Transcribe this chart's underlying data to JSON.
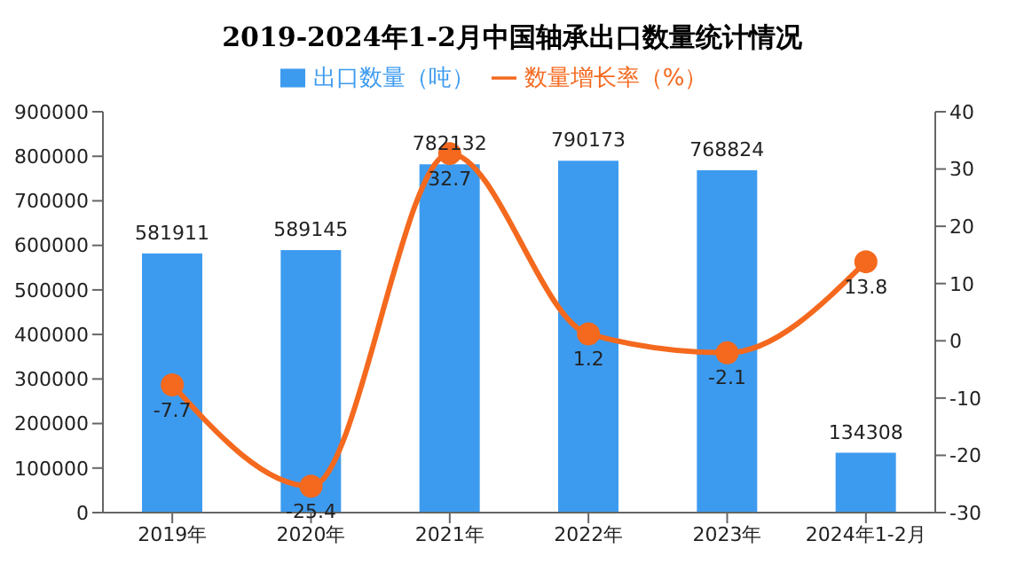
{
  "chart_data": {
    "type": "bar",
    "title": "2019-2024年1-2月中国轴承出口数量统计情况",
    "categories": [
      "2019年",
      "2020年",
      "2021年",
      "2022年",
      "2023年",
      "2024年1-2月"
    ],
    "series": [
      {
        "name": "出口数量（吨）",
        "color": "#3d9bef",
        "values": [
          581911,
          589145,
          782132,
          790173,
          768824,
          134308
        ]
      },
      {
        "name": "数量增长率（%）",
        "type": "line",
        "axis": "y2",
        "color": "#f4691e",
        "marker": "circle",
        "values": [
          -7.7,
          -25.4,
          32.7,
          1.2,
          -2.1,
          13.8
        ]
      }
    ],
    "ylim": [
      0,
      900000
    ],
    "yticks": [
      0,
      100000,
      200000,
      300000,
      400000,
      500000,
      600000,
      700000,
      800000,
      900000
    ],
    "y2lim": [
      -30,
      40
    ],
    "y2ticks": [
      -30,
      -20,
      -10,
      0,
      10,
      20,
      30,
      40
    ],
    "data_labels": true,
    "legend": "top"
  }
}
